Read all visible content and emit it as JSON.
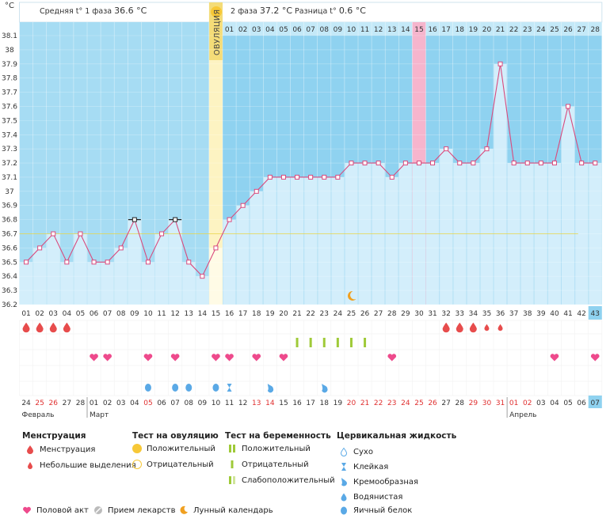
{
  "header": {
    "unit": "°C",
    "phase1_label": "Средняя t° 1 фаза",
    "phase1_value": "36.6 °C",
    "phase2_label": "2 фаза",
    "phase2_value": "37.2 °C",
    "diff_label": "Разница t°",
    "diff_value": "0.6 °C",
    "ovulation_label": "ОВУЛЯЦИЯ"
  },
  "colors": {
    "phase1_bg": "#a6dcf3",
    "phase2_bg": "#8fd2f0",
    "bar_fill": "#d3eefb",
    "ovulation_band": "#fdf3c2",
    "ovulation_strip": "#f4dc78",
    "marked_day": "#f6b5cd",
    "line": "#d94a7d",
    "heart": "#ee4a8c",
    "drop_red": "#e74c4c",
    "green": "#9fca38",
    "blue_drop": "#5aa9e6"
  },
  "chart_data": {
    "type": "line",
    "title": "",
    "xlabel": "",
    "ylabel": "°C",
    "ylim": [
      36.2,
      38.1
    ],
    "y_ticks": [
      "36.2",
      "36.3",
      "36.4",
      "36.5",
      "36.6",
      "36.7",
      "36.8",
      "36.9",
      "37",
      "37.1",
      "37.2",
      "37.3",
      "37.4",
      "37.5",
      "37.6",
      "37.7",
      "37.8",
      "37.9",
      "38",
      "38.1"
    ],
    "cycle_days": [
      "01",
      "02",
      "03",
      "04",
      "05",
      "06",
      "07",
      "08",
      "09",
      "10",
      "11",
      "12",
      "13",
      "14",
      "15",
      "16",
      "17",
      "18",
      "19",
      "20",
      "21",
      "22",
      "23",
      "24",
      "25",
      "26",
      "27",
      "28",
      "29",
      "30",
      "31",
      "32",
      "33",
      "34",
      "35",
      "36",
      "37",
      "38",
      "39",
      "40",
      "41",
      "42",
      "43"
    ],
    "phase2_days": [
      "01",
      "02",
      "03",
      "04",
      "05",
      "06",
      "07",
      "08",
      "09",
      "10",
      "11",
      "12",
      "13",
      "14",
      "15",
      "16",
      "17",
      "18",
      "19",
      "20",
      "21",
      "22",
      "23",
      "24",
      "25",
      "26",
      "27",
      "28"
    ],
    "calendar_dates": [
      "24",
      "25",
      "26",
      "27",
      "28",
      "01",
      "02",
      "03",
      "04",
      "05",
      "06",
      "07",
      "08",
      "09",
      "10",
      "11",
      "12",
      "13",
      "14",
      "15",
      "16",
      "17",
      "18",
      "19",
      "20",
      "21",
      "22",
      "23",
      "24",
      "25",
      "26",
      "27",
      "28",
      "29",
      "30",
      "31",
      "01",
      "02",
      "03",
      "04",
      "05",
      "06",
      "07"
    ],
    "red_dates_idx": [
      1,
      2,
      9,
      17,
      18,
      24,
      25,
      26,
      27,
      28,
      29,
      30,
      33,
      34,
      35,
      36,
      37
    ],
    "month_labels": [
      {
        "label": "Февраль",
        "start": 0
      },
      {
        "label": "Март",
        "start": 5
      },
      {
        "label": "Апрель",
        "start": 36
      }
    ],
    "series": [
      {
        "values": [
          36.5,
          36.6,
          36.7,
          36.5,
          36.7,
          36.5,
          36.5,
          36.6,
          36.8,
          36.5,
          36.7,
          36.8,
          36.5,
          36.4,
          36.6,
          36.8,
          36.9,
          37.0,
          37.1,
          37.1,
          37.1,
          37.1,
          37.1,
          37.1,
          37.2,
          37.2,
          37.2,
          37.1,
          37.2,
          37.2,
          37.2,
          37.3,
          37.2,
          37.2,
          37.3,
          37.9,
          37.2,
          37.2,
          37.2,
          37.2,
          37.6,
          37.2,
          37.2
        ]
      }
    ],
    "coverline": 36.7,
    "ovulation_day_idx": 14,
    "marked_day_idx": 29,
    "current_day_idx": 42,
    "highlight_points_idx": [
      8,
      11
    ],
    "menstruation_days_idx": [
      0,
      1,
      2,
      3,
      31,
      32,
      33
    ],
    "light_spotting_days_idx": [
      34,
      35
    ],
    "pregnancy_test_days_idx": [
      20,
      21,
      22,
      23,
      24,
      25
    ],
    "intercourse_days_idx": [
      5,
      6,
      9,
      11,
      14,
      15,
      17,
      19,
      27,
      39,
      42
    ],
    "egg_white_days_idx": [
      9,
      11,
      12,
      14
    ],
    "sticky_days_idx": [
      15
    ],
    "creamy_days_idx": [
      18,
      22
    ],
    "moon_day_idx": 24
  },
  "legend": {
    "menstruation_title": "Менструация",
    "menstruation": "Менструация",
    "light_spotting": "Небольшие выделения",
    "ovulation_test_title": "Тест на овуляцию",
    "ovulation_positive": "Положительный",
    "ovulation_negative": "Отрицательный",
    "pregnancy_test_title": "Тест на беременность",
    "pregnancy_positive": "Положительный",
    "pregnancy_negative": "Отрицательный",
    "pregnancy_weak": "Слабоположительный",
    "cervical_title": "Цервикальная жидкость",
    "dry": "Сухо",
    "sticky": "Клейкая",
    "creamy": "Кремообразная",
    "watery": "Водянистая",
    "egg_white": "Яичный белок",
    "intercourse": "Половой акт",
    "medication": "Прием лекарств",
    "moon": "Лунный календарь"
  }
}
